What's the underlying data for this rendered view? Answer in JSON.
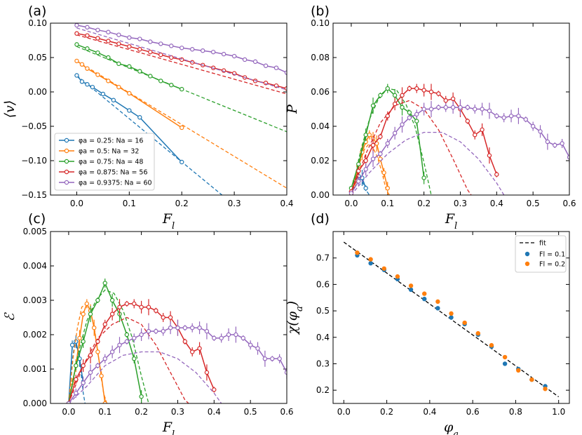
{
  "chart_data": [
    {
      "panel": "(a)",
      "type": "line",
      "xlabel": "F_l",
      "ylabel": "⟨v⟩",
      "xlim": [
        -0.05,
        0.4
      ],
      "ylim": [
        -0.15,
        0.1
      ],
      "xticks": [
        "0.0",
        "0.1",
        "0.2",
        "0.3",
        "0.4"
      ],
      "yticks": [
        "−0.15",
        "−0.10",
        "−0.05",
        "0.00",
        "0.05",
        "0.10"
      ],
      "legend_position": "lower-left",
      "series": [
        {
          "name": "φa = 0.25: Na = 16",
          "color": "#1f77b4",
          "x": [
            0.0,
            0.01,
            0.02,
            0.03,
            0.05,
            0.07,
            0.1,
            0.12,
            0.2
          ],
          "y": [
            0.024,
            0.015,
            0.011,
            0.007,
            -0.003,
            -0.012,
            -0.027,
            -0.037,
            -0.102
          ],
          "fit": {
            "x": [
              0.0,
              0.28
            ],
            "y": [
              0.024,
              -0.152
            ]
          }
        },
        {
          "name": "φa = 0.5: Na = 32",
          "color": "#ff7f0e",
          "x": [
            0.0,
            0.01,
            0.02,
            0.04,
            0.06,
            0.08,
            0.1,
            0.2
          ],
          "y": [
            0.045,
            0.04,
            0.034,
            0.025,
            0.016,
            0.007,
            -0.002,
            -0.052
          ],
          "fit": {
            "x": [
              0.0,
              0.4
            ],
            "y": [
              0.045,
              -0.14
            ]
          }
        },
        {
          "name": "φa = 0.75: Na = 48",
          "color": "#2ca02c",
          "x": [
            0.0,
            0.02,
            0.04,
            0.06,
            0.08,
            0.1,
            0.12,
            0.14,
            0.16,
            0.18,
            0.2
          ],
          "y": [
            0.069,
            0.063,
            0.057,
            0.05,
            0.041,
            0.037,
            0.03,
            0.023,
            0.016,
            0.01,
            0.004
          ],
          "fit": {
            "x": [
              0.0,
              0.4
            ],
            "y": [
              0.066,
              -0.058
            ]
          }
        },
        {
          "name": "φa = 0.875: Na = 56",
          "color": "#d62728",
          "x": [
            0.0,
            0.02,
            0.04,
            0.06,
            0.08,
            0.1,
            0.12,
            0.14,
            0.16,
            0.18,
            0.2,
            0.22,
            0.24,
            0.26,
            0.28,
            0.3,
            0.32,
            0.34,
            0.36,
            0.38,
            0.4
          ],
          "y": [
            0.085,
            0.082,
            0.078,
            0.074,
            0.07,
            0.066,
            0.062,
            0.058,
            0.054,
            0.05,
            0.047,
            0.043,
            0.039,
            0.035,
            0.031,
            0.027,
            0.021,
            0.016,
            0.013,
            0.009,
            0.005
          ],
          "fit": {
            "x": [
              0.0,
              0.4
            ],
            "y": [
              0.083,
              -0.003
            ]
          }
        },
        {
          "name": "φa = 0.9375: Na = 60",
          "color": "#9467bd",
          "x": [
            0.0,
            0.02,
            0.04,
            0.06,
            0.08,
            0.1,
            0.12,
            0.14,
            0.16,
            0.18,
            0.2,
            0.22,
            0.24,
            0.26,
            0.28,
            0.3,
            0.32,
            0.34,
            0.36,
            0.38,
            0.4
          ],
          "y": [
            0.097,
            0.094,
            0.09,
            0.087,
            0.083,
            0.079,
            0.077,
            0.073,
            0.07,
            0.067,
            0.064,
            0.062,
            0.06,
            0.058,
            0.055,
            0.052,
            0.047,
            0.044,
            0.038,
            0.035,
            0.028
          ],
          "fit": {
            "x": [
              0.0,
              0.4
            ],
            "y": [
              0.093,
              0.003
            ]
          }
        }
      ]
    },
    {
      "panel": "(b)",
      "type": "line",
      "xlabel": "F_l",
      "ylabel": "P",
      "xlim": [
        -0.05,
        0.6
      ],
      "ylim": [
        0.0,
        0.1
      ],
      "xticks": [
        "0.0",
        "0.1",
        "0.2",
        "0.3",
        "0.4",
        "0.5",
        "0.6"
      ],
      "yticks": [
        "0.00",
        "0.02",
        "0.04",
        "0.06",
        "0.08",
        "0.10"
      ],
      "series": [
        {
          "color": "#1f77b4",
          "x": [
            0.0,
            0.01,
            0.02,
            0.03,
            0.04
          ],
          "y": [
            0.002,
            0.008,
            0.011,
            0.01,
            0.004
          ],
          "fit": {
            "x": [
              0.0,
              0.01,
              0.02,
              0.03,
              0.04,
              0.05
            ],
            "y": [
              0.0,
              0.0066,
              0.0093,
              0.0081,
              0.003,
              0.0
            ]
          }
        },
        {
          "color": "#ff7f0e",
          "x": [
            0.0,
            0.01,
            0.02,
            0.03,
            0.04,
            0.05,
            0.06,
            0.07,
            0.08,
            0.09,
            0.1
          ],
          "y": [
            0.0,
            0.008,
            0.017,
            0.025,
            0.031,
            0.035,
            0.033,
            0.03,
            0.021,
            0.013,
            0.004
          ],
          "fit": {
            "x": [
              0.0,
              0.012,
              0.024,
              0.036,
              0.048,
              0.06,
              0.072,
              0.084,
              0.096,
              0.105
            ],
            "y": [
              0.0,
              0.0093,
              0.0192,
              0.0265,
              0.0296,
              0.0276,
              0.022,
              0.0135,
              0.003,
              0.0
            ]
          }
        },
        {
          "color": "#2ca02c",
          "x": [
            0.0,
            0.02,
            0.04,
            0.06,
            0.08,
            0.1,
            0.12,
            0.14,
            0.16,
            0.18,
            0.2
          ],
          "y": [
            0.004,
            0.018,
            0.035,
            0.052,
            0.058,
            0.062,
            0.058,
            0.051,
            0.048,
            0.043,
            0.01
          ],
          "fit": {
            "x": [
              0.0,
              0.025,
              0.05,
              0.075,
              0.1,
              0.125,
              0.15,
              0.175,
              0.2,
              0.22
            ],
            "y": [
              0.0,
              0.025,
              0.044,
              0.056,
              0.062,
              0.061,
              0.053,
              0.04,
              0.019,
              0.0
            ]
          }
        },
        {
          "color": "#d62728",
          "x": [
            0.0,
            0.02,
            0.04,
            0.06,
            0.08,
            0.1,
            0.12,
            0.14,
            0.16,
            0.18,
            0.2,
            0.22,
            0.24,
            0.26,
            0.28,
            0.3,
            0.32,
            0.34,
            0.36,
            0.38,
            0.4
          ],
          "y": [
            0.002,
            0.014,
            0.02,
            0.029,
            0.034,
            0.046,
            0.053,
            0.058,
            0.062,
            0.062,
            0.061,
            0.06,
            0.059,
            0.055,
            0.056,
            0.05,
            0.043,
            0.035,
            0.038,
            0.023,
            0.012
          ],
          "fit": {
            "x": [
              0.0,
              0.04,
              0.08,
              0.12,
              0.16,
              0.2,
              0.24,
              0.28,
              0.32,
              0.33
            ],
            "y": [
              0.0,
              0.024,
              0.042,
              0.052,
              0.055,
              0.05,
              0.038,
              0.021,
              0.003,
              0.0
            ]
          }
        },
        {
          "color": "#9467bd",
          "x": [
            0.0,
            0.02,
            0.04,
            0.06,
            0.08,
            0.1,
            0.12,
            0.14,
            0.16,
            0.18,
            0.2,
            0.22,
            0.24,
            0.26,
            0.28,
            0.3,
            0.32,
            0.34,
            0.36,
            0.38,
            0.4,
            0.42,
            0.44,
            0.46,
            0.48,
            0.5,
            0.52,
            0.54,
            0.56,
            0.58,
            0.6
          ],
          "y": [
            0.001,
            0.008,
            0.015,
            0.021,
            0.024,
            0.03,
            0.036,
            0.041,
            0.045,
            0.047,
            0.05,
            0.05,
            0.051,
            0.051,
            0.051,
            0.051,
            0.051,
            0.05,
            0.05,
            0.049,
            0.046,
            0.045,
            0.046,
            0.046,
            0.044,
            0.04,
            0.037,
            0.031,
            0.029,
            0.03,
            0.022
          ],
          "fit": {
            "x": [
              0.0,
              0.05,
              0.1,
              0.15,
              0.2,
              0.25,
              0.3,
              0.35,
              0.4,
              0.42
            ],
            "y": [
              0.0,
              0.013,
              0.024,
              0.032,
              0.0365,
              0.0365,
              0.031,
              0.021,
              0.007,
              0.0
            ]
          }
        }
      ]
    },
    {
      "panel": "(c)",
      "type": "line",
      "xlabel": "F_l",
      "ylabel": "ℰ",
      "xlim": [
        -0.05,
        0.6
      ],
      "ylim": [
        0.0,
        0.005
      ],
      "xticks": [
        "0.0",
        "0.1",
        "0.2",
        "0.3",
        "0.4",
        "0.5",
        "0.6"
      ],
      "yticks": [
        "0.000",
        "0.001",
        "0.002",
        "0.003",
        "0.004",
        "0.005"
      ],
      "series": [
        {
          "color": "#1f77b4",
          "x": [
            0.0,
            0.01,
            0.02,
            0.03,
            0.04
          ],
          "y": [
            0.0,
            0.0017,
            0.0018,
            0.0013,
            0.0006
          ],
          "fit": {
            "x": [
              0.0,
              0.008,
              0.016,
              0.024,
              0.032,
              0.04,
              0.045
            ],
            "y": [
              0.0,
              0.0011,
              0.0017,
              0.0016,
              0.0011,
              0.0003,
              0.0
            ]
          }
        },
        {
          "color": "#ff7f0e",
          "x": [
            0.0,
            0.01,
            0.02,
            0.03,
            0.04,
            0.05,
            0.06,
            0.07,
            0.08,
            0.09,
            0.1
          ],
          "y": [
            0.0,
            0.0006,
            0.0011,
            0.0019,
            0.0026,
            0.0029,
            0.0027,
            0.0022,
            0.0015,
            0.0008,
            0.0
          ],
          "fit": {
            "x": [
              0.0,
              0.012,
              0.024,
              0.036,
              0.048,
              0.06,
              0.072,
              0.084,
              0.096,
              0.105
            ],
            "y": [
              0.0,
              0.0013,
              0.0022,
              0.0028,
              0.0029,
              0.0027,
              0.0021,
              0.0012,
              0.0003,
              0.0
            ]
          }
        },
        {
          "color": "#2ca02c",
          "x": [
            0.0,
            0.02,
            0.04,
            0.06,
            0.08,
            0.1,
            0.12,
            0.14,
            0.16,
            0.18,
            0.2
          ],
          "y": [
            0.0,
            0.0011,
            0.0018,
            0.0026,
            0.003,
            0.0035,
            0.003,
            0.0026,
            0.002,
            0.0013,
            0.0002
          ],
          "fit": {
            "x": [
              0.0,
              0.025,
              0.05,
              0.075,
              0.1,
              0.125,
              0.15,
              0.175,
              0.2,
              0.22
            ],
            "y": [
              0.0,
              0.0014,
              0.0024,
              0.003,
              0.0033,
              0.0032,
              0.0027,
              0.0019,
              0.0008,
              0.0
            ]
          }
        },
        {
          "color": "#d62728",
          "x": [
            0.0,
            0.02,
            0.04,
            0.06,
            0.08,
            0.1,
            0.12,
            0.14,
            0.16,
            0.18,
            0.2,
            0.22,
            0.24,
            0.26,
            0.28,
            0.3,
            0.32,
            0.34,
            0.36,
            0.38,
            0.4
          ],
          "y": [
            0.0,
            0.0007,
            0.0011,
            0.0014,
            0.0018,
            0.0023,
            0.0026,
            0.0028,
            0.0029,
            0.0029,
            0.0028,
            0.0028,
            0.0027,
            0.0025,
            0.0025,
            0.0022,
            0.0018,
            0.0015,
            0.0016,
            0.0009,
            0.0004
          ],
          "fit": {
            "x": [
              0.0,
              0.04,
              0.08,
              0.12,
              0.16,
              0.2,
              0.24,
              0.28,
              0.32,
              0.33
            ],
            "y": [
              0.0,
              0.0011,
              0.0019,
              0.0023,
              0.0025,
              0.0023,
              0.0017,
              0.0009,
              0.0001,
              0.0
            ]
          }
        },
        {
          "color": "#9467bd",
          "x": [
            0.0,
            0.02,
            0.04,
            0.06,
            0.08,
            0.1,
            0.12,
            0.14,
            0.16,
            0.18,
            0.2,
            0.22,
            0.24,
            0.26,
            0.28,
            0.3,
            0.32,
            0.34,
            0.36,
            0.38,
            0.4,
            0.42,
            0.44,
            0.46,
            0.48,
            0.5,
            0.52,
            0.54,
            0.56,
            0.58,
            0.6
          ],
          "y": [
            0.0,
            0.0003,
            0.0006,
            0.0009,
            0.0011,
            0.0013,
            0.0015,
            0.0017,
            0.0018,
            0.0019,
            0.002,
            0.0021,
            0.0021,
            0.0021,
            0.0022,
            0.0022,
            0.0022,
            0.0022,
            0.0022,
            0.0021,
            0.0019,
            0.0019,
            0.002,
            0.002,
            0.0019,
            0.0017,
            0.0016,
            0.0013,
            0.0013,
            0.0013,
            0.0009
          ],
          "fit": {
            "x": [
              0.0,
              0.05,
              0.1,
              0.15,
              0.2,
              0.25,
              0.3,
              0.35,
              0.4,
              0.42
            ],
            "y": [
              0.0,
              0.0005,
              0.0011,
              0.0014,
              0.0015,
              0.0015,
              0.0013,
              0.0009,
              0.0003,
              0.0
            ]
          }
        }
      ]
    },
    {
      "panel": "(d)",
      "type": "scatter",
      "xlabel": "φa",
      "ylabel": "χ(φa)",
      "xlim": [
        -0.05,
        1.05
      ],
      "ylim": [
        0.15,
        0.8
      ],
      "xticks": [
        "0.0",
        "0.2",
        "0.4",
        "0.6",
        "0.8",
        "1.0"
      ],
      "yticks": [
        "0.2",
        "0.3",
        "0.4",
        "0.5",
        "0.6",
        "0.7"
      ],
      "legend_position": "top-right",
      "fit": {
        "name": "fit",
        "x": [
          0.0,
          1.0
        ],
        "y": [
          0.76,
          0.175
        ]
      },
      "series": [
        {
          "name": "Fl = 0.1",
          "color": "#1f77b4",
          "x": [
            0.0625,
            0.125,
            0.1875,
            0.25,
            0.3125,
            0.375,
            0.4375,
            0.5,
            0.5625,
            0.625,
            0.6875,
            0.75,
            0.8125,
            0.875,
            0.9375
          ],
          "y": [
            0.71,
            0.68,
            0.655,
            0.62,
            0.58,
            0.545,
            0.51,
            0.475,
            0.45,
            0.41,
            0.365,
            0.3,
            0.28,
            0.24,
            0.215
          ]
        },
        {
          "name": "Fl = 0.2",
          "color": "#ff7f0e",
          "x": [
            0.0625,
            0.125,
            0.1875,
            0.25,
            0.3125,
            0.375,
            0.4375,
            0.5,
            0.5625,
            0.625,
            0.6875,
            0.75,
            0.8125,
            0.875,
            0.9375
          ],
          "y": [
            0.72,
            0.695,
            0.66,
            0.63,
            0.595,
            0.565,
            0.535,
            0.49,
            0.455,
            0.415,
            0.37,
            0.325,
            0.275,
            0.24,
            0.205
          ]
        }
      ]
    }
  ]
}
